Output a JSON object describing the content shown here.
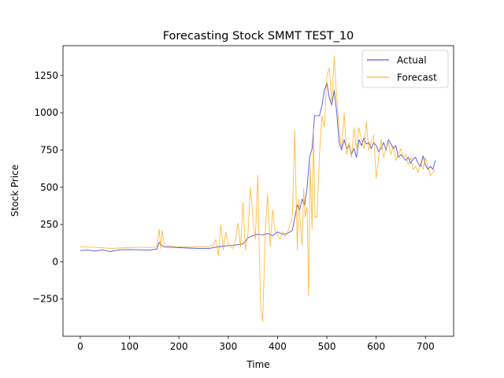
{
  "chart_data": {
    "type": "line",
    "title": "Forecasting Stock SMMT TEST_10",
    "xlabel": "Time",
    "ylabel": "Stock Price",
    "xlim": [
      -35,
      757
    ],
    "ylim": [
      -500,
      1450
    ],
    "x_ticks": [
      0,
      100,
      200,
      300,
      400,
      500,
      600,
      700
    ],
    "x_tick_labels": [
      "0",
      "100",
      "200",
      "300",
      "400",
      "500",
      "600",
      "700"
    ],
    "y_ticks": [
      -250,
      0,
      250,
      500,
      750,
      1000,
      1250
    ],
    "y_tick_labels": [
      "−250",
      "0",
      "250",
      "500",
      "750",
      "1000",
      "1250"
    ],
    "grid": false,
    "legend_position": "top-right",
    "series": [
      {
        "name": "Actual",
        "color": "#3333dd",
        "x": [
          0,
          15,
          30,
          45,
          60,
          70,
          80,
          100,
          120,
          140,
          155,
          160,
          165,
          170,
          180,
          200,
          220,
          240,
          260,
          270,
          280,
          290,
          300,
          310,
          320,
          330,
          340,
          350,
          360,
          370,
          380,
          390,
          400,
          410,
          420,
          430,
          440,
          445,
          450,
          455,
          460,
          465,
          470,
          475,
          480,
          485,
          490,
          495,
          500,
          505,
          510,
          515,
          520,
          525,
          530,
          535,
          540,
          545,
          550,
          555,
          560,
          565,
          570,
          575,
          580,
          585,
          590,
          595,
          600,
          605,
          610,
          615,
          620,
          625,
          630,
          635,
          640,
          645,
          650,
          655,
          660,
          665,
          670,
          675,
          680,
          685,
          690,
          695,
          700,
          705,
          710,
          715,
          720
        ],
        "y": [
          75,
          78,
          72,
          80,
          68,
          75,
          80,
          82,
          80,
          78,
          85,
          130,
          110,
          100,
          98,
          95,
          92,
          90,
          88,
          95,
          100,
          105,
          108,
          110,
          115,
          120,
          160,
          175,
          185,
          180,
          190,
          175,
          200,
          185,
          190,
          210,
          380,
          350,
          420,
          380,
          500,
          700,
          760,
          980,
          980,
          980,
          1050,
          1150,
          1200,
          1100,
          1050,
          1150,
          1000,
          800,
          750,
          820,
          760,
          780,
          720,
          760,
          700,
          820,
          780,
          830,
          790,
          800,
          760,
          800,
          780,
          740,
          760,
          800,
          750,
          820,
          790,
          760,
          780,
          700,
          720,
          700,
          680,
          700,
          660,
          690,
          700,
          660,
          640,
          710,
          650,
          620,
          640,
          620,
          680
        ]
      },
      {
        "name": "Forecast",
        "color": "#ffa500",
        "x": [
          0,
          20,
          40,
          60,
          80,
          100,
          120,
          140,
          155,
          160,
          163,
          166,
          170,
          175,
          180,
          200,
          220,
          240,
          260,
          270,
          275,
          280,
          285,
          290,
          295,
          300,
          305,
          310,
          315,
          320,
          325,
          330,
          335,
          340,
          345,
          350,
          355,
          360,
          363,
          366,
          370,
          375,
          380,
          385,
          390,
          395,
          400,
          405,
          410,
          415,
          420,
          425,
          430,
          435,
          440,
          443,
          447,
          450,
          453,
          456,
          460,
          463,
          466,
          470,
          473,
          476,
          480,
          485,
          490,
          495,
          500,
          505,
          510,
          515,
          520,
          525,
          530,
          535,
          540,
          545,
          550,
          555,
          560,
          565,
          570,
          575,
          580,
          585,
          590,
          595,
          600,
          605,
          610,
          615,
          620,
          625,
          630,
          635,
          640,
          645,
          650,
          655,
          660,
          665,
          670,
          675,
          680,
          685,
          690,
          695,
          700,
          705,
          710,
          715,
          720
        ],
        "y": [
          100,
          98,
          95,
          90,
          92,
          95,
          98,
          95,
          100,
          220,
          90,
          210,
          120,
          110,
          105,
          100,
          98,
          102,
          100,
          110,
          150,
          40,
          250,
          80,
          200,
          120,
          100,
          90,
          150,
          260,
          100,
          400,
          80,
          180,
          500,
          300,
          150,
          580,
          50,
          -300,
          -400,
          200,
          450,
          100,
          350,
          200,
          180,
          150,
          200,
          170,
          190,
          250,
          300,
          880,
          80,
          420,
          220,
          110,
          490,
          300,
          370,
          -230,
          650,
          220,
          890,
          300,
          300,
          720,
          980,
          900,
          1250,
          1300,
          1050,
          1380,
          1100,
          880,
          760,
          1000,
          720,
          800,
          700,
          900,
          760,
          900,
          820,
          760,
          940,
          750,
          800,
          850,
          560,
          700,
          820,
          700,
          760,
          800,
          720,
          780,
          680,
          720,
          760,
          700,
          720,
          650,
          700,
          620,
          640,
          600,
          670,
          620,
          700,
          640,
          580,
          600,
          620
        ]
      }
    ]
  }
}
